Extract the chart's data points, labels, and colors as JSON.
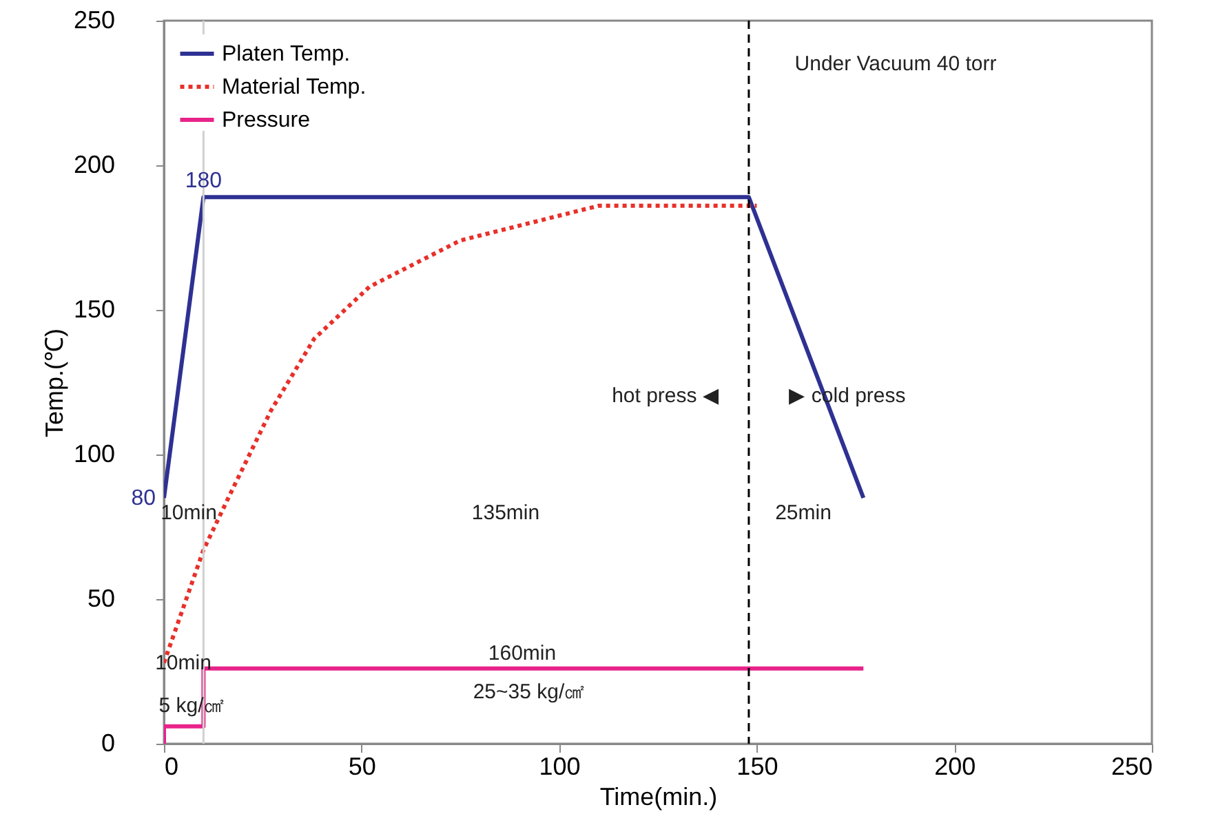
{
  "chart_data": {
    "type": "line",
    "xlabel": "Time(min.)",
    "ylabel": "Temp.(℃)",
    "xlim": [
      0,
      250
    ],
    "xticks": [
      0,
      50,
      100,
      150,
      200,
      250
    ],
    "ylim": [
      0,
      250
    ],
    "yticks": [
      0,
      50,
      100,
      150,
      200,
      250
    ],
    "grid": false,
    "legend": "top left",
    "marker": "none",
    "series": [
      {
        "name": "Platen Temp.",
        "color": "#2e3192",
        "line_style": "solid",
        "x": [
          0,
          10,
          148,
          177
        ],
        "values": [
          85,
          189,
          189,
          85
        ]
      },
      {
        "name": "Material Temp.",
        "color": "#e8302a",
        "line_style": "dotted",
        "x": [
          0,
          10,
          17,
          27,
          38,
          52,
          75,
          110,
          150
        ],
        "values": [
          28,
          67,
          87,
          115,
          140,
          158,
          174,
          186,
          186
        ]
      },
      {
        "name": "Pressure",
        "color": "#e8238a",
        "line_style": "solid",
        "x": [
          0,
          0,
          10,
          10,
          177
        ],
        "values": [
          0,
          6,
          6,
          26,
          26
        ]
      }
    ],
    "ref_lines": [
      {
        "axis": "x",
        "value": 148,
        "color": "#000000",
        "line_style": "dashed"
      },
      {
        "axis": "x",
        "value": 10,
        "color": "#d0d0d0",
        "line_style": "solid"
      }
    ],
    "annotations": [
      {
        "text": "180",
        "x": 10,
        "y": 189
      },
      {
        "text": "80",
        "x": 0,
        "y": 85
      },
      "Under Vacuum 40 torr",
      "10min",
      "135min",
      "25min",
      "hot press ◀",
      "▶ cold press",
      "10min",
      "5 kg/㎠",
      "160min",
      "25~35 kg/㎠"
    ]
  }
}
